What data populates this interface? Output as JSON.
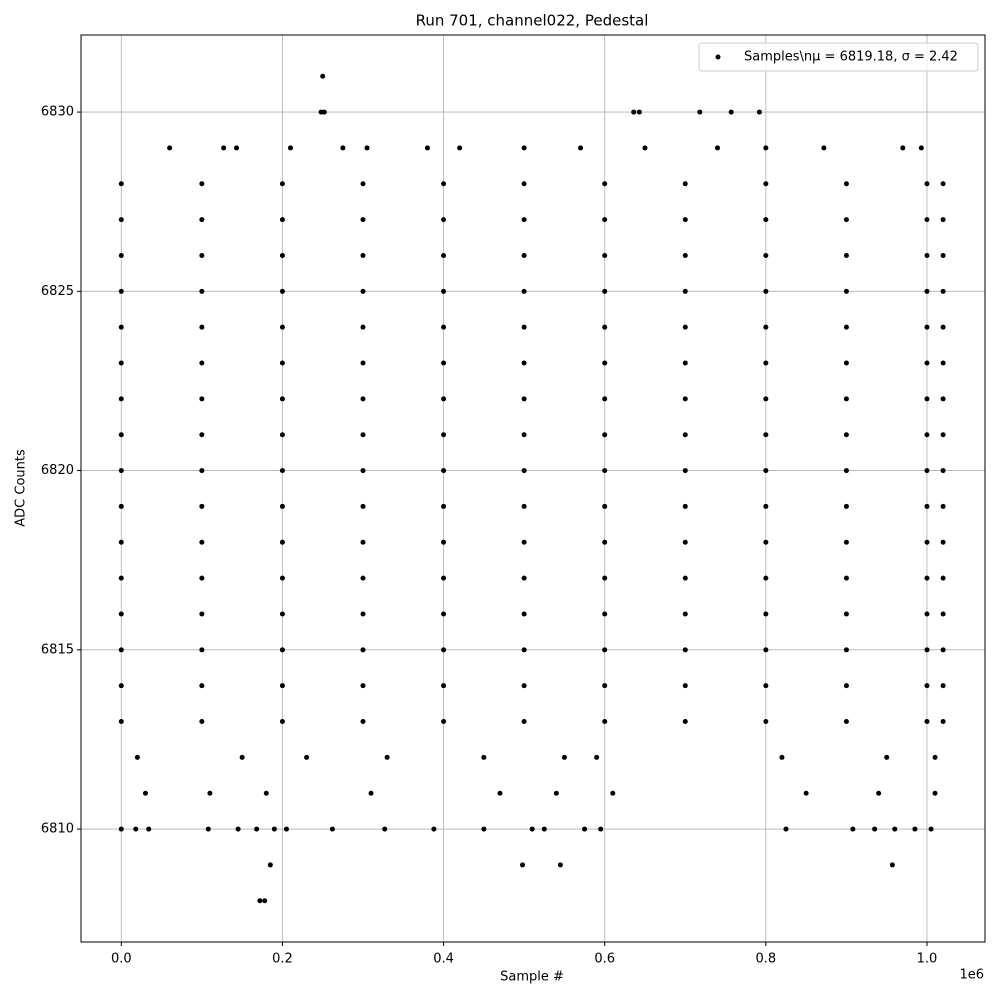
{
  "chart_data": {
    "type": "scatter",
    "title": "Run 701, channel022, Pedestal",
    "x_label": "Sample #",
    "y_label": "ADC Counts",
    "x_offset_label": "1e6",
    "xlim": [
      -50000,
      1072000
    ],
    "ylim": [
      6806.85,
      6832.15
    ],
    "xticks": [
      {
        "value": 0,
        "label": "0.0"
      },
      {
        "value": 200000,
        "label": "0.2"
      },
      {
        "value": 400000,
        "label": "0.4"
      },
      {
        "value": 600000,
        "label": "0.6"
      },
      {
        "value": 800000,
        "label": "0.8"
      },
      {
        "value": 1000000,
        "label": "1.0"
      }
    ],
    "yticks": [
      6810,
      6815,
      6820,
      6825,
      6830
    ],
    "grid": true,
    "legend": "upper right",
    "series": [
      {
        "name": "Samples\\nμ = 6819.18, σ = 2.42",
        "color": "#000000",
        "x": [
          0,
          100000,
          200000,
          300000,
          400000,
          500000,
          600000,
          700000,
          800000,
          900000,
          1000000,
          1020000,
          0,
          100000,
          200000,
          300000,
          400000,
          500000,
          600000,
          700000,
          800000,
          900000,
          1000000,
          1020000,
          0,
          100000,
          200000,
          300000,
          400000,
          500000,
          600000,
          700000,
          800000,
          900000,
          1000000,
          1020000,
          0,
          100000,
          200000,
          300000,
          400000,
          500000,
          600000,
          700000,
          800000,
          900000,
          1000000,
          1020000,
          0,
          100000,
          200000,
          300000,
          400000,
          500000,
          600000,
          700000,
          800000,
          900000,
          1000000,
          1020000,
          0,
          100000,
          200000,
          300000,
          400000,
          500000,
          600000,
          700000,
          800000,
          900000,
          1000000,
          1020000,
          0,
          100000,
          200000,
          300000,
          400000,
          500000,
          600000,
          700000,
          800000,
          900000,
          1000000,
          1020000,
          0,
          100000,
          200000,
          300000,
          400000,
          500000,
          600000,
          700000,
          800000,
          900000,
          1000000,
          1020000,
          0,
          100000,
          200000,
          300000,
          400000,
          500000,
          600000,
          700000,
          800000,
          900000,
          1000000,
          1020000,
          0,
          100000,
          200000,
          300000,
          400000,
          500000,
          600000,
          700000,
          800000,
          900000,
          1000000,
          1020000,
          0,
          100000,
          200000,
          300000,
          400000,
          500000,
          600000,
          700000,
          800000,
          900000,
          1000000,
          1020000,
          0,
          100000,
          200000,
          300000,
          400000,
          500000,
          600000,
          700000,
          800000,
          900000,
          1000000,
          1020000,
          0,
          100000,
          200000,
          300000,
          400000,
          500000,
          600000,
          700000,
          800000,
          900000,
          1000000,
          1020000,
          0,
          100000,
          200000,
          300000,
          400000,
          500000,
          600000,
          700000,
          800000,
          900000,
          1000000,
          1020000,
          0,
          100000,
          200000,
          300000,
          400000,
          500000,
          600000,
          700000,
          800000,
          900000,
          1000000,
          1020000,
          0,
          100000,
          200000,
          300000,
          400000,
          500000,
          600000,
          700000,
          800000,
          900000,
          1000000,
          1020000,
          20000,
          150000,
          230000,
          330000,
          450000,
          550000,
          590000,
          820000,
          950000,
          1010000,
          30000,
          110000,
          180000,
          310000,
          470000,
          540000,
          610000,
          850000,
          940000,
          1010000,
          250000,
          248000,
          252000,
          636000,
          643000,
          718000,
          757000,
          792000,
          60000,
          127000,
          143000,
          210000,
          275000,
          305000,
          380000,
          420000,
          500000,
          570000,
          650000,
          740000,
          800000,
          872000,
          970000,
          993000,
          0,
          18000,
          34000,
          108000,
          145000,
          168000,
          190000,
          205000,
          262000,
          327000,
          388000,
          450000,
          510000,
          525000,
          575000,
          595000,
          825000,
          908000,
          935000,
          960000,
          985000,
          1005000,
          185000,
          498000,
          545000,
          957000,
          172000,
          178000
        ],
        "values": [
          6813,
          6813,
          6813,
          6813,
          6813,
          6813,
          6813,
          6813,
          6813,
          6813,
          6813,
          6813,
          6814,
          6814,
          6814,
          6814,
          6814,
          6814,
          6814,
          6814,
          6814,
          6814,
          6814,
          6814,
          6815,
          6815,
          6815,
          6815,
          6815,
          6815,
          6815,
          6815,
          6815,
          6815,
          6815,
          6815,
          6816,
          6816,
          6816,
          6816,
          6816,
          6816,
          6816,
          6816,
          6816,
          6816,
          6816,
          6816,
          6817,
          6817,
          6817,
          6817,
          6817,
          6817,
          6817,
          6817,
          6817,
          6817,
          6817,
          6817,
          6818,
          6818,
          6818,
          6818,
          6818,
          6818,
          6818,
          6818,
          6818,
          6818,
          6818,
          6818,
          6819,
          6819,
          6819,
          6819,
          6819,
          6819,
          6819,
          6819,
          6819,
          6819,
          6819,
          6819,
          6820,
          6820,
          6820,
          6820,
          6820,
          6820,
          6820,
          6820,
          6820,
          6820,
          6820,
          6820,
          6821,
          6821,
          6821,
          6821,
          6821,
          6821,
          6821,
          6821,
          6821,
          6821,
          6821,
          6821,
          6822,
          6822,
          6822,
          6822,
          6822,
          6822,
          6822,
          6822,
          6822,
          6822,
          6822,
          6822,
          6823,
          6823,
          6823,
          6823,
          6823,
          6823,
          6823,
          6823,
          6823,
          6823,
          6823,
          6823,
          6824,
          6824,
          6824,
          6824,
          6824,
          6824,
          6824,
          6824,
          6824,
          6824,
          6824,
          6824,
          6825,
          6825,
          6825,
          6825,
          6825,
          6825,
          6825,
          6825,
          6825,
          6825,
          6825,
          6825,
          6826,
          6826,
          6826,
          6826,
          6826,
          6826,
          6826,
          6826,
          6826,
          6826,
          6826,
          6826,
          6827,
          6827,
          6827,
          6827,
          6827,
          6827,
          6827,
          6827,
          6827,
          6827,
          6827,
          6827,
          6828,
          6828,
          6828,
          6828,
          6828,
          6828,
          6828,
          6828,
          6828,
          6828,
          6828,
          6828,
          6812,
          6812,
          6812,
          6812,
          6812,
          6812,
          6812,
          6812,
          6812,
          6812,
          6811,
          6811,
          6811,
          6811,
          6811,
          6811,
          6811,
          6811,
          6811,
          6811,
          6831,
          6830,
          6830,
          6830,
          6830,
          6830,
          6830,
          6830,
          6829,
          6829,
          6829,
          6829,
          6829,
          6829,
          6829,
          6829,
          6829,
          6829,
          6829,
          6829,
          6829,
          6829,
          6829,
          6829,
          6810,
          6810,
          6810,
          6810,
          6810,
          6810,
          6810,
          6810,
          6810,
          6810,
          6810,
          6810,
          6810,
          6810,
          6810,
          6810,
          6810,
          6810,
          6810,
          6810,
          6810,
          6810,
          6809,
          6809,
          6809,
          6809,
          6808,
          6808
        ]
      }
    ]
  }
}
